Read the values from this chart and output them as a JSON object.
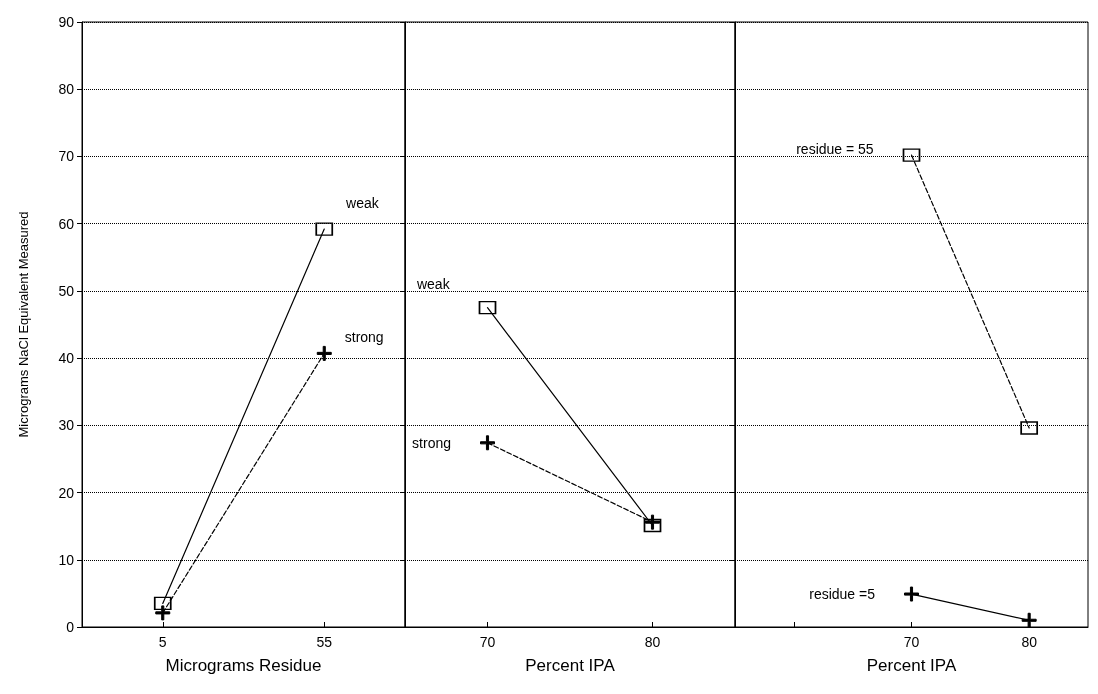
{
  "chart_data": [
    {
      "type": "line",
      "ylabel": "Micrograms NaCl Equivalent Measured",
      "xlabel": "Micrograms Residue",
      "categories": [
        "5",
        "55"
      ],
      "ylim": [
        0,
        90
      ],
      "yticks": [
        0,
        10,
        20,
        30,
        40,
        50,
        60,
        70,
        80,
        90
      ],
      "grid": "y",
      "legend": false,
      "series": [
        {
          "name": "weak",
          "color": "#000000",
          "values": [
            3.5,
            59.2
          ],
          "marker": "square",
          "line_style": "solid"
        },
        {
          "name": "strong",
          "color": "#000000",
          "values": [
            2.1,
            40.7
          ],
          "marker": "cross",
          "line_style": "dashed"
        }
      ]
    },
    {
      "type": "line",
      "xlabel": "Percent IPA",
      "categories": [
        "70",
        "80"
      ],
      "ylim": [
        0,
        90
      ],
      "yticks": [
        0,
        10,
        20,
        30,
        40,
        50,
        60,
        70,
        80,
        90
      ],
      "tick_labels": "x",
      "grid": "y",
      "legend": false,
      "series": [
        {
          "name": "weak",
          "color": "#000000",
          "values": [
            47.5,
            15.1
          ],
          "marker": "square",
          "line_style": "solid"
        },
        {
          "name": "strong",
          "color": "#000000",
          "values": [
            27.4,
            15.6
          ],
          "marker": "cross",
          "line_style": "dashed"
        }
      ]
    },
    {
      "type": "line",
      "xlabel": "Percent IPA",
      "categories": [
        null,
        "70",
        "80"
      ],
      "ylim": [
        0,
        90
      ],
      "yticks": [
        0,
        10,
        20,
        30,
        40,
        50,
        60,
        70,
        80,
        90
      ],
      "tick_labels": "x",
      "grid": "y",
      "legend": false,
      "series": [
        {
          "name": "residue = 55",
          "color": "#000000",
          "values": [
            null,
            70.2,
            29.6
          ],
          "marker": "square",
          "line_style": "dashed"
        },
        {
          "name": "residue =5",
          "color": "#000000",
          "values": [
            null,
            4.9,
            1.0
          ],
          "marker": "cross",
          "line_style": "solid"
        }
      ]
    }
  ]
}
